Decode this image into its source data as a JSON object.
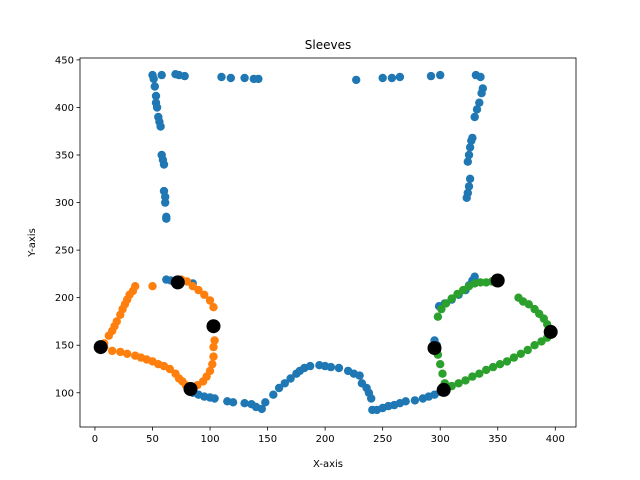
{
  "chart_data": {
    "type": "scatter",
    "title": "Sleeves",
    "xlabel": "X-axis",
    "ylabel": "Y-axis",
    "xlim": [
      -13,
      418
    ],
    "ylim": [
      64,
      452
    ],
    "x_ticks": [
      0,
      50,
      100,
      150,
      200,
      250,
      300,
      350,
      400
    ],
    "y_ticks": [
      100,
      150,
      200,
      250,
      300,
      350,
      400,
      450
    ],
    "grid": false,
    "legend": "none",
    "series": [
      {
        "color": "#1f77b4",
        "marker_size": "small",
        "points": [
          [
            50,
            434
          ],
          [
            51,
            430
          ],
          [
            52,
            422
          ],
          [
            53,
            412
          ],
          [
            53,
            405
          ],
          [
            54,
            400
          ],
          [
            55,
            390
          ],
          [
            56,
            385
          ],
          [
            57,
            380
          ],
          [
            58,
            350
          ],
          [
            59,
            345
          ],
          [
            60,
            340
          ],
          [
            60,
            312
          ],
          [
            61,
            306
          ],
          [
            61,
            300
          ],
          [
            62,
            285
          ],
          [
            62,
            283
          ],
          [
            58,
            434
          ],
          [
            70,
            435
          ],
          [
            73,
            434
          ],
          [
            78,
            433
          ],
          [
            110,
            432
          ],
          [
            118,
            431
          ],
          [
            130,
            431
          ],
          [
            138,
            430
          ],
          [
            142,
            430
          ],
          [
            227,
            429
          ],
          [
            250,
            431
          ],
          [
            258,
            431
          ],
          [
            265,
            432
          ],
          [
            292,
            433
          ],
          [
            300,
            434
          ],
          [
            331,
            434
          ],
          [
            335,
            432
          ],
          [
            337,
            420
          ],
          [
            336,
            415
          ],
          [
            334,
            405
          ],
          [
            332,
            398
          ],
          [
            330,
            390
          ],
          [
            328,
            368
          ],
          [
            327,
            365
          ],
          [
            326,
            358
          ],
          [
            325,
            350
          ],
          [
            324,
            343
          ],
          [
            326,
            325
          ],
          [
            325,
            317
          ],
          [
            324,
            310
          ],
          [
            323,
            305
          ],
          [
            62,
            219
          ],
          [
            66,
            218
          ],
          [
            75,
            217
          ],
          [
            85,
            215
          ],
          [
            85,
            100
          ],
          [
            90,
            98
          ],
          [
            95,
            96
          ],
          [
            100,
            95
          ],
          [
            104,
            94
          ],
          [
            115,
            91
          ],
          [
            120,
            90
          ],
          [
            130,
            89
          ],
          [
            136,
            88
          ],
          [
            140,
            85
          ],
          [
            145,
            83
          ],
          [
            148,
            90
          ],
          [
            155,
            98
          ],
          [
            160,
            105
          ],
          [
            165,
            110
          ],
          [
            170,
            115
          ],
          [
            175,
            120
          ],
          [
            178,
            123
          ],
          [
            182,
            126
          ],
          [
            187,
            128
          ],
          [
            195,
            129
          ],
          [
            200,
            128
          ],
          [
            205,
            127
          ],
          [
            212,
            126
          ],
          [
            220,
            123
          ],
          [
            225,
            120
          ],
          [
            230,
            118
          ],
          [
            232,
            110
          ],
          [
            236,
            105
          ],
          [
            238,
            100
          ],
          [
            240,
            94
          ],
          [
            241,
            82
          ],
          [
            245,
            82
          ],
          [
            250,
            84
          ],
          [
            255,
            86
          ],
          [
            260,
            87
          ],
          [
            265,
            89
          ],
          [
            270,
            91
          ],
          [
            278,
            92
          ],
          [
            285,
            94
          ],
          [
            290,
            96
          ],
          [
            295,
            98
          ],
          [
            300,
            101
          ],
          [
            295,
            155
          ],
          [
            297,
            150
          ],
          [
            297,
            144
          ],
          [
            299,
            191
          ],
          [
            304,
            194
          ],
          [
            310,
            198
          ],
          [
            316,
            203
          ],
          [
            322,
            208
          ],
          [
            325,
            213
          ],
          [
            328,
            218
          ],
          [
            330,
            222
          ]
        ]
      },
      {
        "color": "#ff7f0e",
        "marker_size": "small",
        "points": [
          [
            8,
            152
          ],
          [
            12,
            160
          ],
          [
            15,
            165
          ],
          [
            17,
            170
          ],
          [
            19,
            175
          ],
          [
            22,
            182
          ],
          [
            24,
            188
          ],
          [
            26,
            193
          ],
          [
            28,
            198
          ],
          [
            30,
            203
          ],
          [
            33,
            207
          ],
          [
            35,
            212
          ],
          [
            50,
            212
          ],
          [
            75,
            219
          ],
          [
            80,
            217
          ],
          [
            85,
            212
          ],
          [
            90,
            208
          ],
          [
            95,
            203
          ],
          [
            100,
            197
          ],
          [
            103,
            190
          ],
          [
            8,
            148
          ],
          [
            15,
            144
          ],
          [
            22,
            143
          ],
          [
            28,
            141
          ],
          [
            35,
            139
          ],
          [
            40,
            137
          ],
          [
            45,
            135
          ],
          [
            50,
            133
          ],
          [
            55,
            130
          ],
          [
            60,
            128
          ],
          [
            65,
            125
          ],
          [
            70,
            120
          ],
          [
            73,
            115
          ],
          [
            76,
            112
          ],
          [
            79,
            108
          ],
          [
            84,
            106
          ],
          [
            89,
            108
          ],
          [
            94,
            112
          ],
          [
            97,
            117
          ],
          [
            100,
            123
          ],
          [
            102,
            130
          ],
          [
            103,
            138
          ],
          [
            103,
            148
          ],
          [
            104,
            155
          ]
        ]
      },
      {
        "color": "#2ca02c",
        "marker_size": "small",
        "points": [
          [
            298,
            180
          ],
          [
            301,
            188
          ],
          [
            305,
            194
          ],
          [
            310,
            199
          ],
          [
            315,
            204
          ],
          [
            320,
            208
          ],
          [
            325,
            212
          ],
          [
            330,
            215
          ],
          [
            335,
            216
          ],
          [
            340,
            216
          ],
          [
            345,
            217
          ],
          [
            350,
            219
          ],
          [
            368,
            200
          ],
          [
            372,
            196
          ],
          [
            377,
            193
          ],
          [
            382,
            188
          ],
          [
            386,
            183
          ],
          [
            390,
            178
          ],
          [
            393,
            172
          ],
          [
            396,
            166
          ],
          [
            298,
            140
          ],
          [
            300,
            130
          ],
          [
            302,
            120
          ],
          [
            304,
            110
          ],
          [
            306,
            106
          ],
          [
            310,
            107
          ],
          [
            316,
            110
          ],
          [
            322,
            113
          ],
          [
            328,
            117
          ],
          [
            334,
            120
          ],
          [
            340,
            124
          ],
          [
            346,
            127
          ],
          [
            352,
            130
          ],
          [
            358,
            133
          ],
          [
            364,
            137
          ],
          [
            370,
            141
          ],
          [
            376,
            145
          ],
          [
            382,
            150
          ],
          [
            388,
            154
          ],
          [
            393,
            158
          ],
          [
            396,
            162
          ]
        ]
      },
      {
        "color": "#000000",
        "marker_size": "large",
        "points": [
          [
            5,
            148
          ],
          [
            72,
            216
          ],
          [
            103,
            170
          ],
          [
            83,
            104
          ],
          [
            295,
            147
          ],
          [
            303,
            103
          ],
          [
            350,
            218
          ],
          [
            396,
            164
          ]
        ]
      }
    ]
  }
}
